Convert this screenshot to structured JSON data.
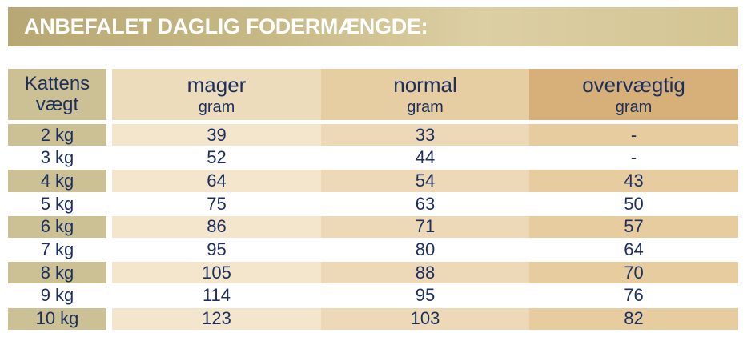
{
  "title": "ANBEFALET DAGLIG FODERMÆNGDE:",
  "headers": [
    {
      "line1": "Kattens",
      "line2": "vægt"
    },
    {
      "line1": "mager",
      "line2": "gram"
    },
    {
      "line1": "normal",
      "line2": "gram"
    },
    {
      "line1": "overvægtig",
      "line2": "gram"
    }
  ],
  "rows": [
    [
      "2 kg",
      "39",
      "33",
      "-"
    ],
    [
      "3 kg",
      "52",
      "44",
      "-"
    ],
    [
      "4 kg",
      "64",
      "54",
      "43"
    ],
    [
      "5 kg",
      "75",
      "63",
      "50"
    ],
    [
      "6 kg",
      "86",
      "71",
      "57"
    ],
    [
      "7 kg",
      "95",
      "80",
      "64"
    ],
    [
      "8 kg",
      "105",
      "88",
      "70"
    ],
    [
      "9 kg",
      "114",
      "95",
      "76"
    ],
    [
      "10 kg",
      "123",
      "103",
      "82"
    ]
  ],
  "colors": {
    "text": "#1c2f5e",
    "weight_header": "#cbc195",
    "weight_stripe": "#cbc195",
    "mager_header": "#ecdcbc",
    "mager_stripe": "#f3e6cd",
    "normal_header": "#e6cda2",
    "normal_stripe": "#edd9b7",
    "overvaegtig_header": "#d6b078",
    "overvaegtig_stripe": "#e6cc9f",
    "plain_row": "#ffffff"
  }
}
